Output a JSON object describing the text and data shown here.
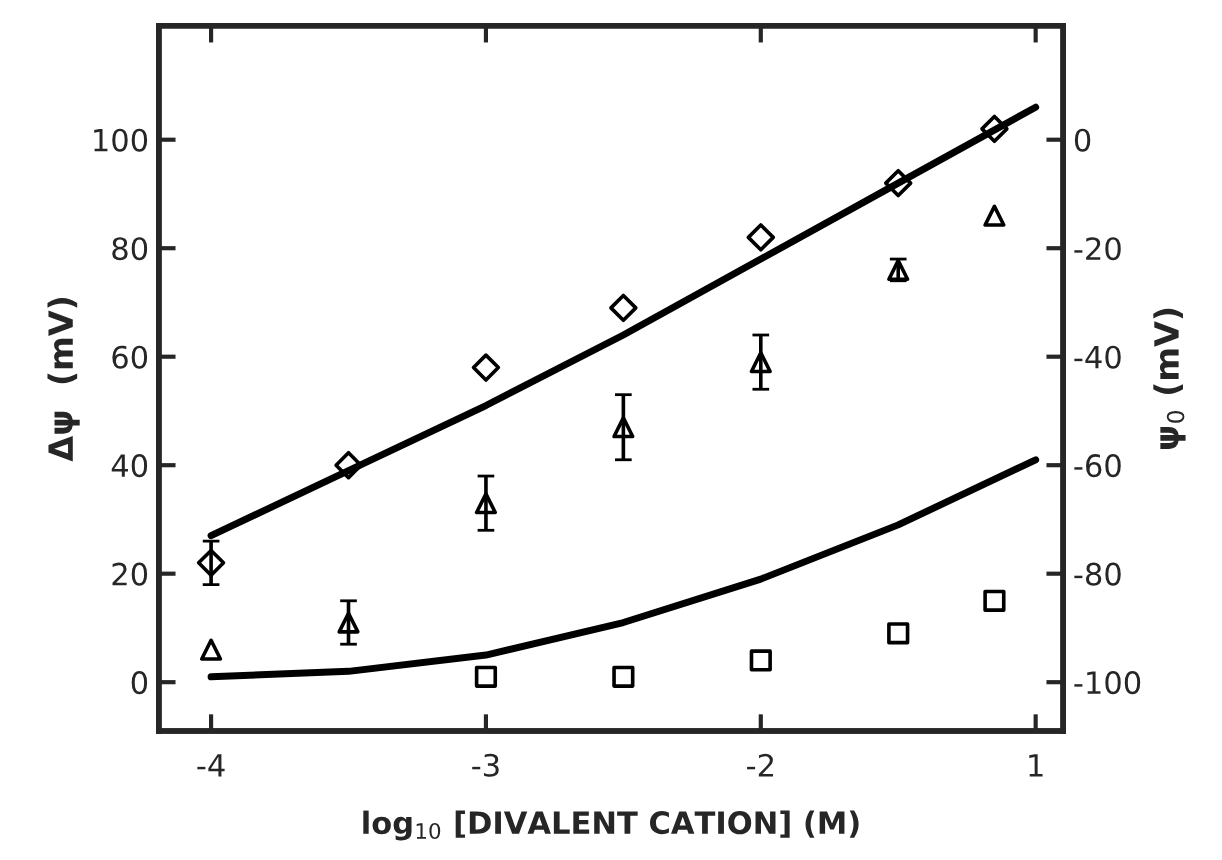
{
  "chart_data": {
    "type": "scatter",
    "xlabel": "log$_{10}$ [DIVALENT CATION] (M)",
    "ylabel": "Δψ  (mV)",
    "y2label": "ψ$_{0}$ (mV)",
    "xlim": [
      -4.19,
      -0.9
    ],
    "xticks": [
      -4,
      -3,
      -2,
      {
        "value": -1,
        "label": "1"
      }
    ],
    "ylim": [
      -9,
      121
    ],
    "yticks": [
      0,
      20,
      40,
      60,
      80,
      100
    ],
    "y2lim": [
      -109,
      21
    ],
    "y2ticks": [
      -100,
      -80,
      -60,
      -40,
      -20,
      0
    ],
    "grid": false,
    "legend": false,
    "series": [
      {
        "marker": "diamond",
        "color": "#000000",
        "x": [
          -4,
          -3.5,
          -3,
          -2.5,
          -2,
          -1.5,
          -1.15
        ],
        "values": [
          22,
          40,
          58,
          69,
          82,
          92,
          102
        ],
        "errors": [
          4,
          null,
          null,
          null,
          null,
          null,
          null
        ]
      },
      {
        "marker": "triangle",
        "color": "#000000",
        "x": [
          -4,
          -3.5,
          -3,
          -2.5,
          -2,
          -1.5,
          -1.15
        ],
        "values": [
          6,
          11,
          33,
          47,
          59,
          76,
          86
        ],
        "errors": [
          null,
          4,
          5,
          6,
          5,
          2,
          null
        ]
      },
      {
        "marker": "square",
        "color": "#000000",
        "x": [
          -3,
          -2.5,
          -2,
          -1.5,
          -1.15
        ],
        "values": [
          1,
          1,
          4,
          9,
          15
        ]
      },
      {
        "type": "line",
        "line_style": "solid",
        "color": "#000000",
        "x": [
          -4,
          -3.5,
          -3,
          -2.5,
          -2,
          -1.5,
          -1
        ],
        "values": [
          27,
          39,
          51,
          64,
          78,
          92,
          106
        ]
      },
      {
        "type": "line",
        "line_style": "solid",
        "color": "#000000",
        "x": [
          -4,
          -3.5,
          -3,
          -2.5,
          -2,
          -1.5,
          -1
        ],
        "values": [
          1,
          2,
          5,
          11,
          19,
          29,
          41
        ]
      }
    ]
  }
}
